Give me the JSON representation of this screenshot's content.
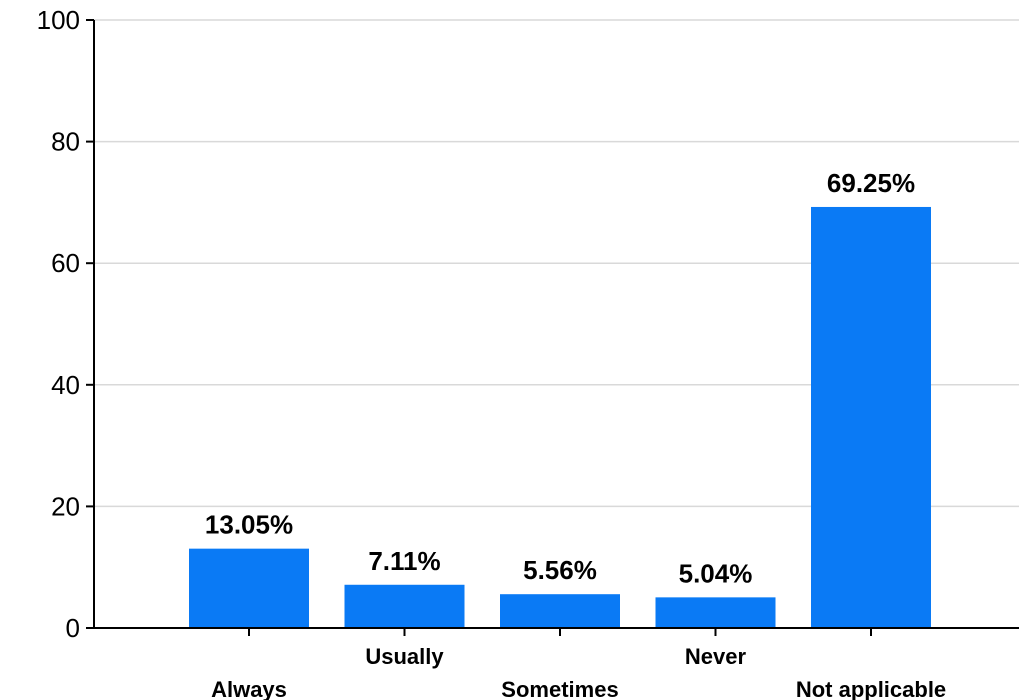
{
  "chart_data": {
    "type": "bar",
    "categories": [
      "Always",
      "Usually",
      "Sometimes",
      "Never",
      "Not applicable"
    ],
    "values": [
      13.05,
      7.11,
      5.56,
      5.04,
      69.25
    ],
    "data_labels": [
      "13.05%",
      "7.11%",
      "5.56%",
      "5.04%",
      "69.25%"
    ],
    "y_ticks": [
      0,
      20,
      40,
      60,
      80,
      100
    ],
    "ylim": [
      0,
      100
    ],
    "title": "",
    "xlabel": "",
    "ylabel": "",
    "grid": true,
    "legend": "none",
    "colors": {
      "bar": "#0a7af5",
      "grid": "#d9d9d9",
      "axis": "#000000"
    }
  }
}
